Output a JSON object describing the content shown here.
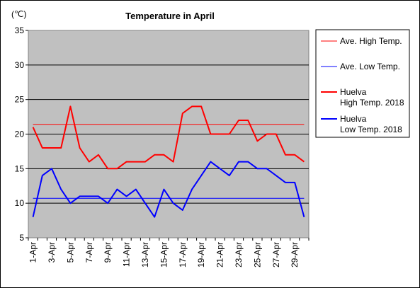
{
  "chart_data": {
    "type": "line",
    "title": "Temperature in April",
    "unit_label": "(℃)",
    "ylim": [
      5,
      35
    ],
    "y_ticks": [
      5,
      10,
      15,
      20,
      25,
      30,
      35
    ],
    "grid": true,
    "legend_position": "right",
    "x": [
      "1-Apr",
      "2-Apr",
      "3-Apr",
      "4-Apr",
      "5-Apr",
      "6-Apr",
      "7-Apr",
      "8-Apr",
      "9-Apr",
      "10-Apr",
      "11-Apr",
      "12-Apr",
      "13-Apr",
      "14-Apr",
      "15-Apr",
      "16-Apr",
      "17-Apr",
      "18-Apr",
      "19-Apr",
      "20-Apr",
      "21-Apr",
      "22-Apr",
      "23-Apr",
      "24-Apr",
      "25-Apr",
      "26-Apr",
      "27-Apr",
      "28-Apr",
      "29-Apr",
      "30-Apr"
    ],
    "x_tick_labels": [
      "1-Apr",
      "3-Apr",
      "5-Apr",
      "7-Apr",
      "9-Apr",
      "11-Apr",
      "13-Apr",
      "15-Apr",
      "17-Apr",
      "19-Apr",
      "21-Apr",
      "23-Apr",
      "25-Apr",
      "27-Apr",
      "29-Apr"
    ],
    "series": [
      {
        "name": "Ave. High Temp.",
        "color": "#ff0000",
        "width": 1,
        "values": [
          21.4,
          21.4,
          21.4,
          21.4,
          21.4,
          21.4,
          21.4,
          21.4,
          21.4,
          21.4,
          21.4,
          21.4,
          21.4,
          21.4,
          21.4,
          21.4,
          21.4,
          21.4,
          21.4,
          21.4,
          21.4,
          21.4,
          21.4,
          21.4,
          21.4,
          21.4,
          21.4,
          21.4,
          21.4,
          21.4
        ]
      },
      {
        "name": "Ave. Low Temp.",
        "color": "#0000ff",
        "width": 1,
        "values": [
          10.7,
          10.7,
          10.7,
          10.7,
          10.7,
          10.7,
          10.7,
          10.7,
          10.7,
          10.7,
          10.7,
          10.7,
          10.7,
          10.7,
          10.7,
          10.7,
          10.7,
          10.7,
          10.7,
          10.7,
          10.7,
          10.7,
          10.7,
          10.7,
          10.7,
          10.7,
          10.7,
          10.7,
          10.7,
          10.7
        ]
      },
      {
        "name": "Huelva High Temp. 2018",
        "legend_lines": [
          "Huelva",
          "High Temp. 2018"
        ],
        "color": "#ff0000",
        "width": 2,
        "values": [
          21,
          18,
          18,
          18,
          24,
          18,
          16,
          17,
          15,
          15,
          16,
          16,
          16,
          17,
          17,
          16,
          23,
          24,
          24,
          20,
          20,
          20,
          22,
          22,
          19,
          20,
          20,
          17,
          17,
          16
        ]
      },
      {
        "name": "Huelva Low Temp. 2018",
        "legend_lines": [
          "Huelva",
          "Low Temp. 2018"
        ],
        "color": "#0000ff",
        "width": 2,
        "values": [
          8,
          14,
          15,
          12,
          10,
          11,
          11,
          11,
          10,
          12,
          11,
          12,
          10,
          8,
          12,
          10,
          9,
          12,
          14,
          16,
          15,
          14,
          16,
          16,
          15,
          15,
          14,
          13,
          13,
          8
        ]
      }
    ]
  },
  "colors": {
    "plot_background": "#c0c0c0",
    "gridline": "#000000",
    "axis": "#808080"
  }
}
